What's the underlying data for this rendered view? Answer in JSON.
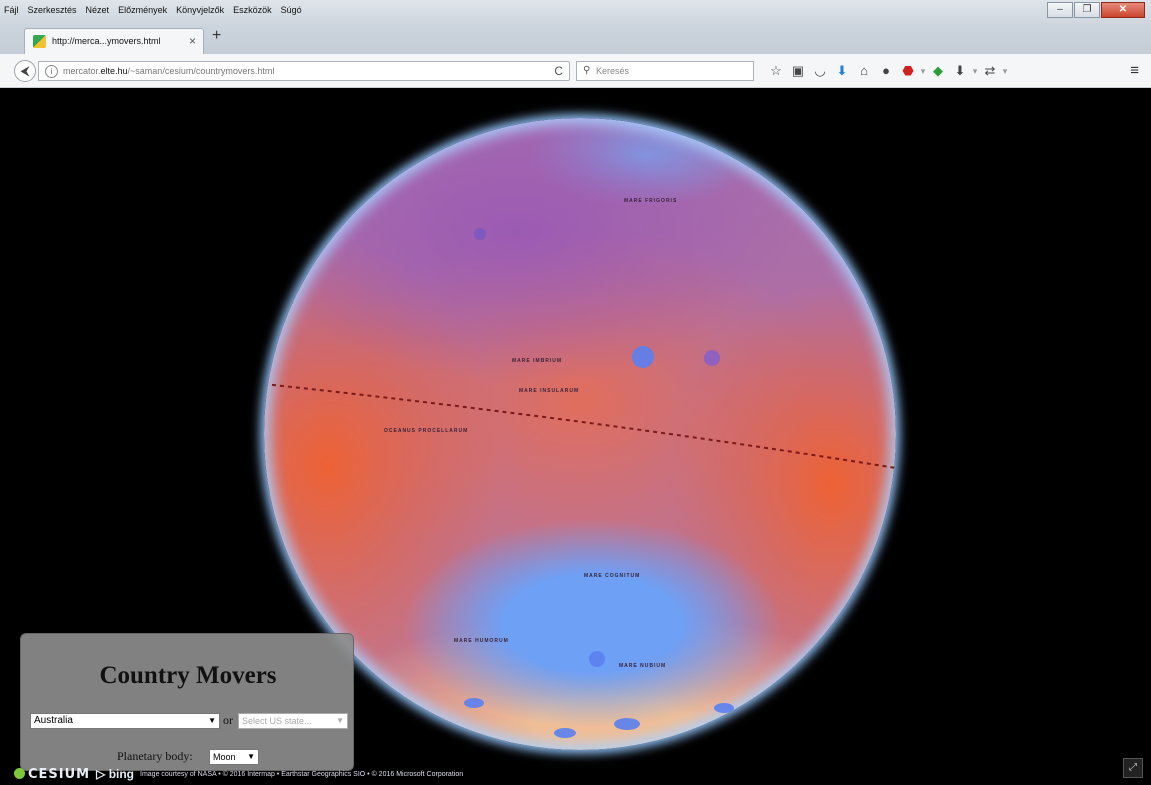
{
  "menu": [
    "Fájl",
    "Szerkesztés",
    "Nézet",
    "Előzmények",
    "Könyvjelzők",
    "Eszközök",
    "Súgó"
  ],
  "window_controls": {
    "minimize": "–",
    "restore": "❐",
    "close": "✕"
  },
  "tab": {
    "title": "http://merca...ymovers.html",
    "close": "×",
    "new": "+"
  },
  "nav": {
    "back": "⮜",
    "url_host_prefix": "mercator.",
    "url_host_bold": "elte.hu",
    "url_path": "/~saman/cesium/countrymovers.html",
    "reload": "C",
    "search_placeholder": "Keresés"
  },
  "toolbar_icons": [
    "star-icon",
    "clipboard-icon",
    "pocket-icon",
    "download-arrow-icon",
    "home-icon",
    "chat-icon",
    "adblock-icon",
    "dropdown-caret-icon",
    "extension-badge-icon",
    "download-icon",
    "dropdown-caret-icon",
    "sync-icon",
    "dropdown-caret-icon"
  ],
  "app": {
    "title": "Country Movers",
    "country_select_value": "Australia",
    "or_label": "or",
    "state_select_placeholder": "Select US state...",
    "planetary_body_label": "Planetary body:",
    "planetary_body_value": "Moon"
  },
  "credits": {
    "cesium": "CESIUM",
    "bing": "bing",
    "attribution": "Image courtesy of NASA • © 2016 Intermap • Earthstar Geographics SIO • © 2016 Microsoft Corporation"
  },
  "map_labels": [
    "MARE IMBRIUM",
    "MARE FRIGORIS",
    "MARE NUBIUM",
    "MARE HUMORUM",
    "MARE COGNITUM",
    "OCEANUS PROCELLARUM",
    "MARE INSULARUM"
  ]
}
